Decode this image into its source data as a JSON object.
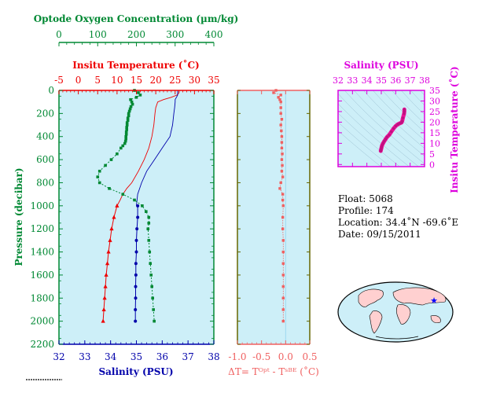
{
  "chart_data": [
    {
      "type": "line",
      "panel": "profile",
      "top_axis_oxygen": {
        "label": "Optode Oxygen Concentration (µm/kg)",
        "ticks": [
          "0",
          "100",
          "200",
          "300",
          "400"
        ],
        "range": [
          0,
          400
        ],
        "color": "#008833"
      },
      "top_axis_temperature": {
        "label": "Insitu Temperature (˚C)",
        "ticks": [
          "-5",
          "0",
          "5",
          "10",
          "15",
          "20",
          "25",
          "30",
          "35"
        ],
        "range": [
          -5,
          35
        ],
        "color": "#ee0000"
      },
      "bottom_axis_salinity": {
        "label": "Salinity (PSU)",
        "ticks": [
          "32",
          "33",
          "34",
          "35",
          "36",
          "37",
          "38"
        ],
        "range": [
          32,
          38
        ],
        "color": "#0000aa"
      },
      "y_axis": {
        "label": "Pressure (decibar)",
        "ticks": [
          "0",
          "200",
          "400",
          "600",
          "800",
          "1000",
          "1200",
          "1400",
          "1600",
          "1800",
          "2000",
          "2200"
        ],
        "range": [
          0,
          2200
        ],
        "inverted": true,
        "color": "#008833"
      },
      "background": "#cdeff8",
      "series": [
        {
          "unit": "temperature",
          "color": "#ee0000",
          "line_pressure": [
            0,
            20,
            40,
            60,
            80,
            100,
            150,
            200,
            300,
            400,
            500,
            600,
            700,
            800,
            850,
            900,
            950,
            1000
          ],
          "line_values": [
            26.0,
            26.0,
            25.5,
            24.0,
            22.0,
            20.5,
            20.0,
            19.8,
            19.5,
            19.0,
            18.2,
            17.0,
            15.5,
            13.8,
            12.5,
            11.5,
            10.8,
            10.0
          ],
          "marker_pressure": [
            1000,
            1100,
            1200,
            1300,
            1400,
            1500,
            1600,
            1700,
            1800,
            1900,
            2000
          ],
          "marker_values": [
            10.0,
            9.2,
            8.6,
            8.2,
            7.8,
            7.5,
            7.2,
            7.0,
            6.8,
            6.6,
            6.4
          ],
          "marker": "triangle"
        },
        {
          "unit": "salinity",
          "color": "#0000aa",
          "line_pressure": [
            0,
            20,
            40,
            60,
            80,
            100,
            150,
            200,
            300,
            400,
            500,
            600,
            700,
            800,
            900,
            1000
          ],
          "line_values": [
            36.6,
            36.6,
            36.6,
            36.55,
            36.5,
            36.5,
            36.48,
            36.45,
            36.4,
            36.3,
            36.0,
            35.7,
            35.4,
            35.2,
            35.05,
            35.0
          ],
          "marker_pressure": [
            1000,
            1100,
            1200,
            1300,
            1400,
            1500,
            1600,
            1700,
            1800,
            1900,
            2000
          ],
          "marker_values": [
            35.05,
            35.05,
            35.02,
            35.0,
            35.0,
            34.98,
            34.98,
            34.97,
            34.97,
            34.96,
            34.96
          ],
          "marker": "circle"
        },
        {
          "unit": "oxygen",
          "color": "#008833",
          "marker_pressure": [
            0,
            20,
            40,
            60,
            80,
            100,
            120,
            140,
            160,
            180,
            200,
            220,
            240,
            260,
            280,
            300,
            320,
            340,
            360,
            380,
            400,
            420,
            440,
            460,
            480,
            500,
            550,
            600,
            650,
            700,
            750,
            800,
            850,
            900,
            950,
            1000,
            1050,
            1100,
            1150,
            1200,
            1300,
            1400,
            1500,
            1600,
            1700,
            1800,
            1900,
            2000
          ],
          "marker_values": [
            195,
            205,
            210,
            200,
            185,
            188,
            190,
            186,
            184,
            182,
            180,
            180,
            178,
            178,
            176,
            176,
            175,
            175,
            174,
            174,
            173,
            173,
            172,
            170,
            165,
            160,
            150,
            135,
            120,
            105,
            100,
            105,
            130,
            165,
            195,
            215,
            225,
            232,
            232,
            230,
            232,
            234,
            236,
            238,
            240,
            242,
            244,
            246
          ],
          "marker": "square"
        }
      ]
    },
    {
      "type": "scatter",
      "panel": "temperature-difference",
      "x_label": "ΔT= Tᴼᵖᵗ - Tˢᴮᴱ (˚C)",
      "x_ticks": [
        "-1.0",
        "-0.5",
        "0.0",
        "0.5"
      ],
      "x_range": [
        -1.0,
        0.5
      ],
      "y_range": [
        0,
        2200
      ],
      "inverted": true,
      "color": "#f06060",
      "zero_line_color": "#9fd8f0",
      "pressure": [
        0,
        20,
        40,
        60,
        80,
        100,
        150,
        200,
        250,
        300,
        350,
        400,
        450,
        500,
        550,
        600,
        650,
        700,
        750,
        800,
        850,
        900,
        950,
        1000,
        1100,
        1200,
        1300,
        1400,
        1500,
        1600,
        1700,
        1800,
        1900,
        2000
      ],
      "values": [
        -0.2,
        -0.25,
        -0.1,
        -0.15,
        -0.12,
        -0.1,
        -0.1,
        -0.1,
        -0.08,
        -0.1,
        -0.09,
        -0.08,
        -0.08,
        -0.08,
        -0.07,
        -0.08,
        -0.07,
        -0.08,
        -0.06,
        -0.1,
        -0.12,
        -0.06,
        -0.06,
        -0.05,
        -0.06,
        -0.06,
        -0.05,
        -0.05,
        -0.05,
        -0.05,
        -0.05,
        -0.05,
        -0.05,
        -0.05
      ]
    },
    {
      "type": "scatter",
      "panel": "ts-diagram",
      "x_label": "Salinity (PSU)",
      "x_ticks": [
        "32",
        "33",
        "34",
        "35",
        "36",
        "37",
        "38"
      ],
      "x_range": [
        32,
        38
      ],
      "y_label": "Insitu Temperature (˚C)",
      "y_ticks": [
        "0",
        "5",
        "10",
        "15",
        "20",
        "25",
        "30",
        "35"
      ],
      "y_range": [
        -1,
        35
      ],
      "color": "#ee1199",
      "axis_color": "#dd00dd",
      "background": "#cdeff8",
      "salinity": [
        36.6,
        36.6,
        36.58,
        36.5,
        36.45,
        36.4,
        36.3,
        36.15,
        36.0,
        35.85,
        35.7,
        35.55,
        35.4,
        35.3,
        35.2,
        35.12,
        35.05,
        35.02,
        35.0,
        34.98,
        34.96
      ],
      "temperature": [
        26.0,
        25.0,
        24.0,
        22.0,
        20.5,
        19.8,
        19.5,
        19.0,
        18.2,
        17.0,
        15.5,
        14.0,
        13.0,
        12.0,
        11.0,
        10.0,
        9.0,
        8.2,
        7.5,
        7.0,
        6.4
      ]
    }
  ],
  "info": {
    "float": "Float:  5068",
    "profile": "Profile:  174",
    "location": "Location:  34.4˚N  -69.6˚E",
    "date": "Date:  09/15/2011"
  }
}
